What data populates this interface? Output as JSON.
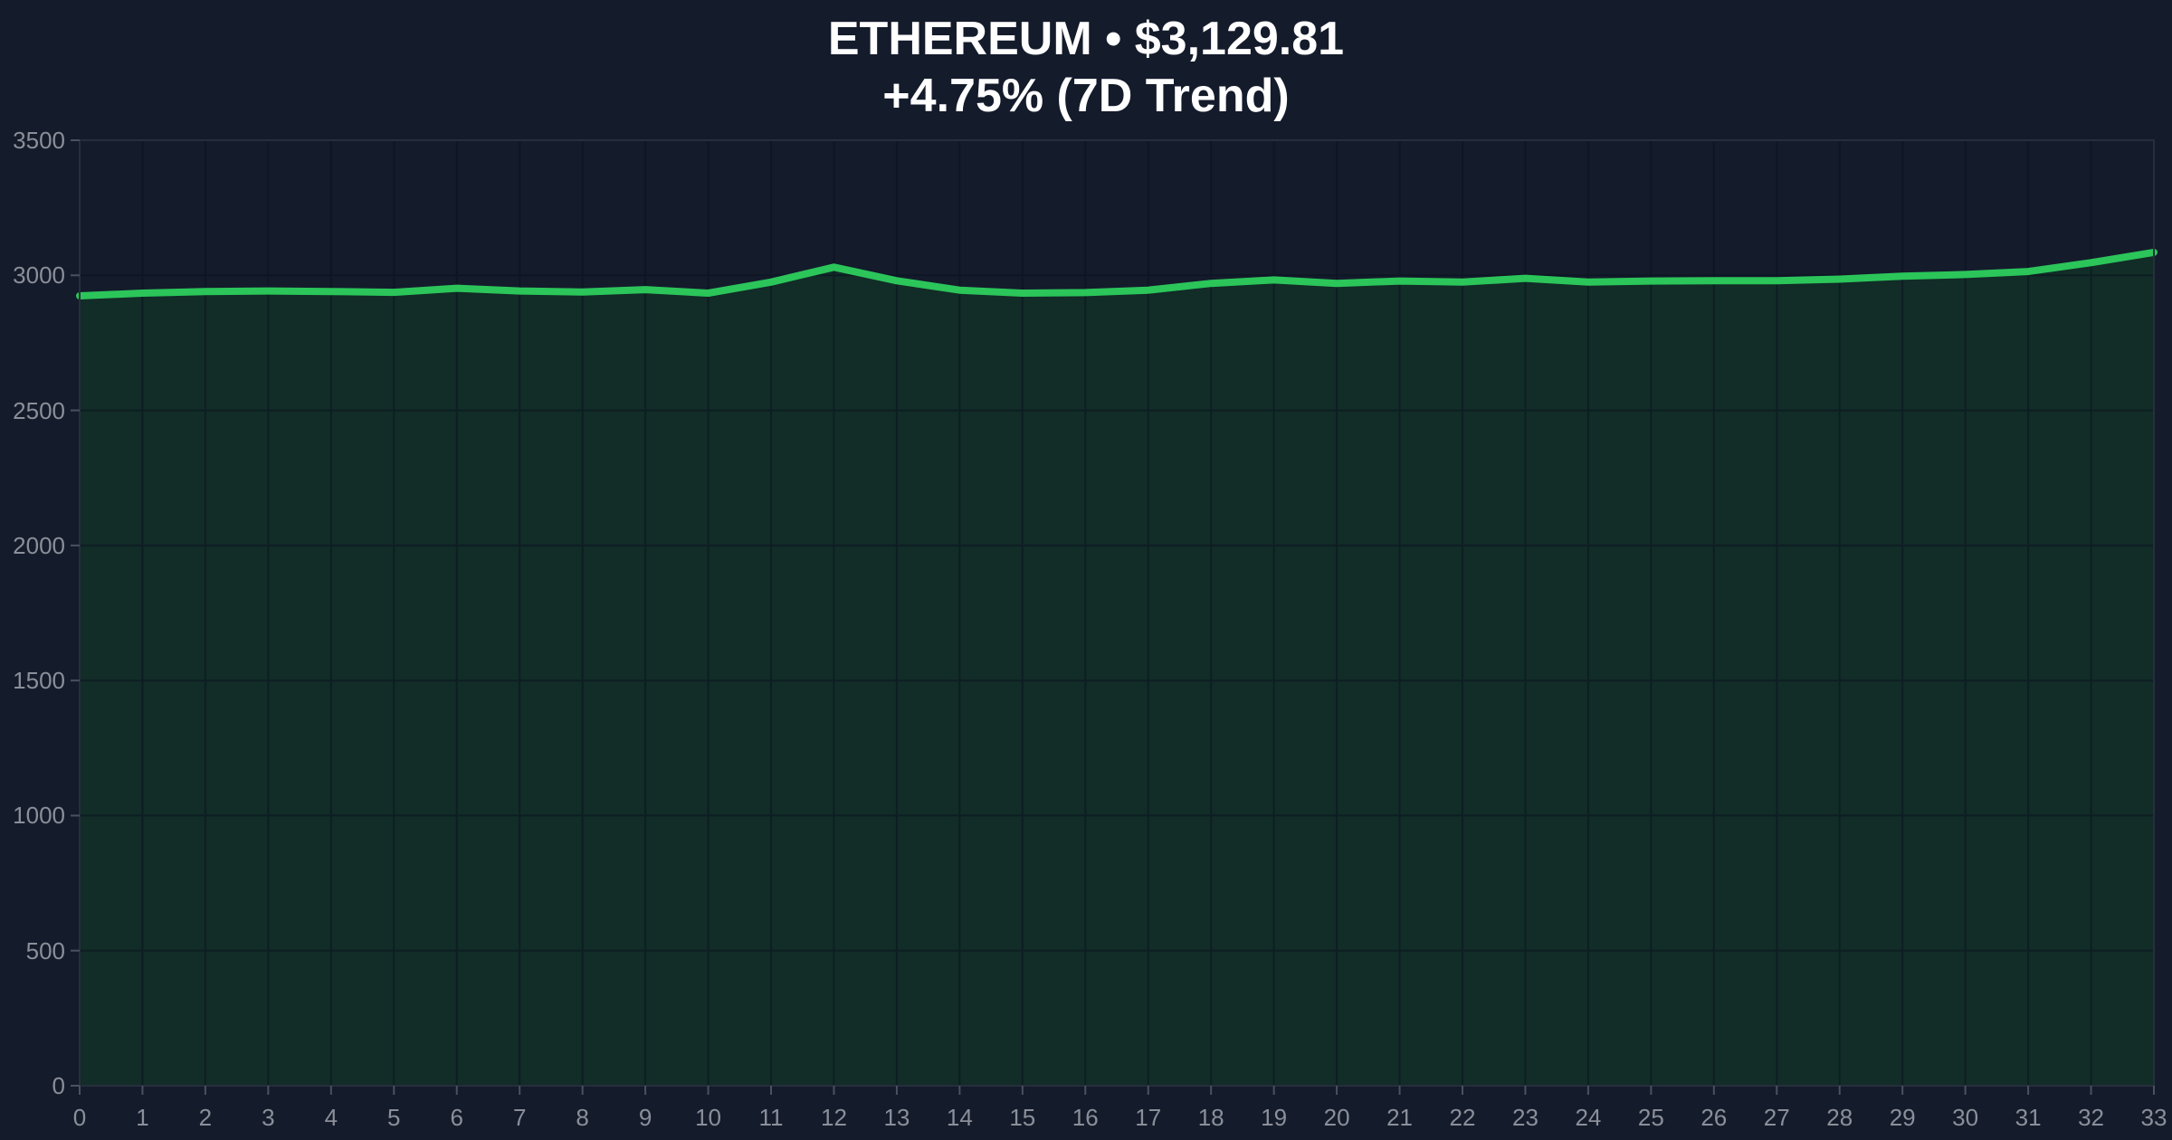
{
  "title": {
    "line1": "ETHEREUM • $3,129.81",
    "line2": "+4.75% (7D Trend)"
  },
  "chart_data": {
    "type": "area",
    "title": "ETHEREUM • $3,129.81",
    "subtitle": "+4.75% (7D Trend)",
    "xlabel": "",
    "ylabel": "",
    "x": [
      0,
      1,
      2,
      3,
      4,
      5,
      6,
      7,
      8,
      9,
      10,
      11,
      12,
      13,
      14,
      15,
      16,
      17,
      18,
      19,
      20,
      21,
      22,
      23,
      24,
      25,
      26,
      27,
      28,
      29,
      30,
      31,
      32,
      33
    ],
    "values": [
      2924,
      2934,
      2940,
      2942,
      2940,
      2937,
      2952,
      2942,
      2938,
      2947,
      2934,
      2975,
      3030,
      2980,
      2945,
      2934,
      2936,
      2945,
      2970,
      2983,
      2970,
      2979,
      2975,
      2989,
      2975,
      2979,
      2980,
      2980,
      2986,
      2997,
      3003,
      3014,
      3047,
      3085
    ],
    "xlim": [
      0,
      33
    ],
    "ylim": [
      0,
      3500
    ],
    "x_ticks": [
      "0",
      "1",
      "2",
      "3",
      "4",
      "5",
      "6",
      "7",
      "8",
      "9",
      "10",
      "11",
      "12",
      "13",
      "14",
      "15",
      "16",
      "17",
      "18",
      "19",
      "20",
      "21",
      "22",
      "23",
      "24",
      "25",
      "26",
      "27",
      "28",
      "29",
      "30",
      "31",
      "32",
      "33"
    ],
    "y_ticks": [
      "0",
      "500",
      "1000",
      "1500",
      "2000",
      "2500",
      "3000",
      "3500"
    ],
    "grid": true,
    "legend": false
  },
  "colors": {
    "background": "#141b2b",
    "line": "#2bc55a",
    "fill": "#122c28",
    "grid": "#0a111f",
    "axis_spine": "#272e3d",
    "tick_mark": "#4a5160",
    "tick_label": "#8a8f99",
    "title": "#ffffff"
  }
}
